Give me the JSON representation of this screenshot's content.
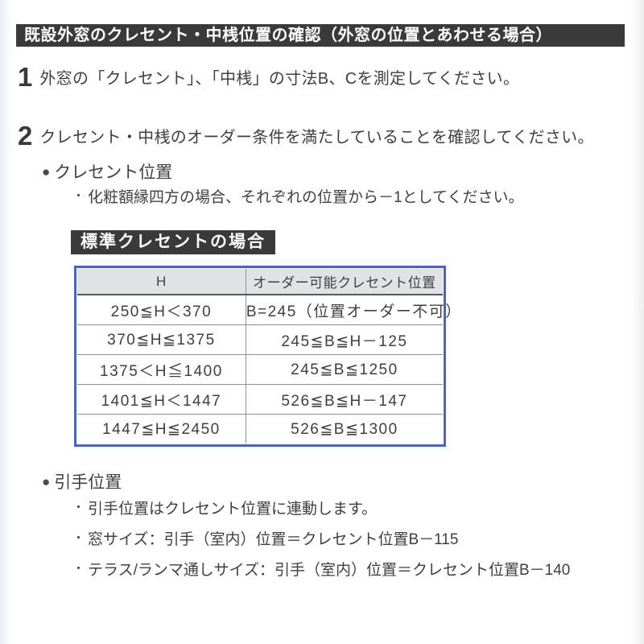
{
  "title": "既設外窓のクレセント・中桟位置の確認（外窓の位置とあわせる場合）",
  "glyphs": {
    "section_bullet": "●",
    "note_bullet": "・"
  },
  "steps": [
    {
      "number": "1",
      "text": "外窓の「クレセント」、「中桟」の寸法B、Cを測定してください。"
    },
    {
      "number": "2",
      "text": "クレセント・中桟のオーダー条件を満たしていることを確認してください。"
    }
  ],
  "crescent": {
    "heading": "クレセント位置",
    "note": "化粧額縁四方の場合、それぞれの位置から－1としてください。"
  },
  "table_label": "標準クレセントの場合",
  "table": {
    "headers": [
      "H",
      "オーダー可能クレセント位置"
    ],
    "rows": [
      [
        "250≦H＜370",
        "B=245（位置オーダー不可）"
      ],
      [
        "370≦H≦1375",
        "245≦B≦H－125"
      ],
      [
        "1375＜H≦1400",
        "245≦B≦1250"
      ],
      [
        "1401≦H＜1447",
        "526≦B≦H－147"
      ],
      [
        "1447≦H≦2450",
        "526≦B≦1300"
      ]
    ]
  },
  "handle": {
    "heading": "引手位置",
    "notes": [
      "引手位置はクレセント位置に連動します。",
      "窓サイズ：引手（室内）位置＝クレセント位置B－115",
      "テラス/ランマ通しサイズ：引手（室内）位置＝クレセント位置B－140"
    ]
  },
  "colors": {
    "bar_bg": "#3a3a3a",
    "bar_text": "#ffffff",
    "table_border": "#4a62cd",
    "table_header_bg": "#e0e2e5",
    "grid_line": "#8d9094",
    "body_text": "#3f3f3f"
  }
}
